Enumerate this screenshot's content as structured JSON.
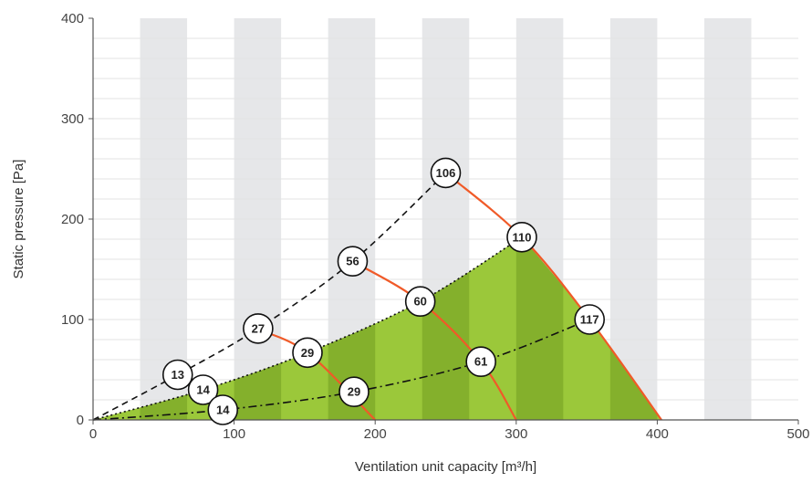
{
  "chart_data": {
    "type": "line",
    "xlabel": "Ventilation unit capacity [m³/h]",
    "ylabel": "Static pressure [Pa]",
    "xlim": [
      0,
      500
    ],
    "ylim": [
      0,
      400
    ],
    "x_ticks": [
      "0",
      "100",
      "200",
      "300",
      "400",
      "500"
    ],
    "y_ticks": [
      "0",
      "100",
      "200",
      "300",
      "400"
    ],
    "grid": "vertical bands",
    "series": [
      {
        "style": "dashed",
        "x": [
          0,
          60,
          117,
          184,
          250
        ],
        "y": [
          0,
          45,
          91,
          158,
          246
        ]
      },
      {
        "style": "dotted",
        "x": [
          0,
          78,
          152,
          232,
          304
        ],
        "y": [
          0,
          30,
          67,
          118,
          182
        ]
      },
      {
        "style": "dash-dot",
        "x": [
          0,
          92,
          185,
          275,
          352
        ],
        "y": [
          0,
          10,
          28,
          58,
          100
        ]
      }
    ],
    "speed_curves": [
      {
        "x": [
          115,
          152,
          200
        ],
        "y": [
          91,
          67,
          0
        ]
      },
      {
        "x": [
          184,
          232,
          275,
          300
        ],
        "y": [
          158,
          118,
          58,
          0
        ]
      },
      {
        "x": [
          250,
          304,
          352,
          403
        ],
        "y": [
          246,
          182,
          100,
          0
        ]
      }
    ],
    "markers": [
      {
        "label": "106",
        "x": 250,
        "y": 246
      },
      {
        "label": "110",
        "x": 304,
        "y": 182
      },
      {
        "label": "56",
        "x": 184,
        "y": 158
      },
      {
        "label": "60",
        "x": 232,
        "y": 118
      },
      {
        "label": "117",
        "x": 352,
        "y": 100
      },
      {
        "label": "27",
        "x": 117,
        "y": 91
      },
      {
        "label": "29",
        "x": 152,
        "y": 67
      },
      {
        "label": "61",
        "x": 275,
        "y": 58
      },
      {
        "label": "13",
        "x": 60,
        "y": 45
      },
      {
        "label": "14",
        "x": 78,
        "y": 30
      },
      {
        "label": "29",
        "x": 185,
        "y": 28
      },
      {
        "label": "14",
        "x": 92,
        "y": 10
      }
    ],
    "colors": {
      "band": "#e6e7e9",
      "fill_light": "#9bc83a",
      "fill_dark": "#84b02c",
      "speed_curve": "#f05a28",
      "working_line": "#111111"
    }
  }
}
